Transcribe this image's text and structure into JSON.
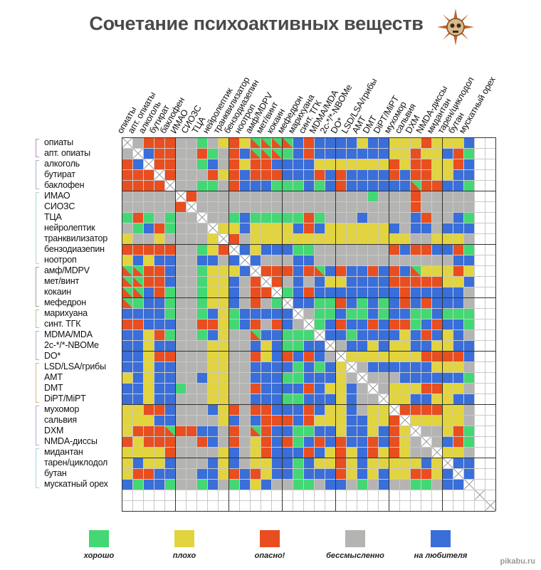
{
  "title": "Сочетание психоактивных веществ",
  "watermark": "pikabu.ru",
  "chart_data": {
    "type": "heatmap",
    "title": "Сочетание психоактивных веществ",
    "rows": [
      "опиаты",
      "апт. опиаты",
      "алкоголь",
      "бутират",
      "баклофен",
      "ИМАО",
      "СИОЗС",
      "ТЦА",
      "нейролептик",
      "транквилизатор",
      "бензодиазепин",
      "ноотроп",
      "амф/MDPV",
      "мет/винт",
      "кокаин",
      "мефедрон",
      "марихуана",
      "синт. ТГК",
      "MDMA/MDA",
      "2с-*/*-NBOMe",
      "DO*",
      "LSD/LSA/грибы",
      "AMT",
      "DMT",
      "DiPT/MiPT",
      "мухомор",
      "сальвия",
      "DXM",
      "NMDA-диссы",
      "мидантан",
      "тарен/циклодол",
      "бутан",
      "мускатный орех",
      "",
      ""
    ],
    "columns": [
      "опиаты",
      "апт. опиаты",
      "алкоголь",
      "бутират",
      "баклофен",
      "ИМАО",
      "СИОЗС",
      "ТЦА",
      "нейролептик",
      "транквилизатор",
      "бензодиазепин",
      "ноотроп",
      "амф/MDPV",
      "мет/винт",
      "кокаин",
      "мефедрон",
      "марихуана",
      "синт. ТГК",
      "MDMA/MDA",
      "2c-*/*-NBOMe",
      "DO*",
      "LSD/LSA/грибы",
      "AMT",
      "DMT",
      "DiPT/MiPT",
      "мухомор",
      "сальвия",
      "DXM",
      "NMDA-диссы",
      "мидантан",
      "тарен/циклодол",
      "бутан",
      "мускатный орех",
      "",
      ""
    ],
    "legend": [
      {
        "code": "G",
        "label": "хорошо",
        "color": "#43d874"
      },
      {
        "code": "Y",
        "label": "плохо",
        "color": "#e2d43f"
      },
      {
        "code": "R",
        "label": "опасно!",
        "color": "#e84e1f"
      },
      {
        "code": "S",
        "label": "бессмысленно",
        "color": "#b4b4b2"
      },
      {
        "code": "B",
        "label": "на любителя",
        "color": "#3a6ed8"
      }
    ],
    "special_codes": {
      "X": "diagonal (same substance)",
      "T": "split опасно!/хорошо",
      "W": "empty"
    },
    "matrix": [
      "XSRRRSSGSYRYTTTTBRBBBBYBBYYYRYYYBWW",
      "SXBRRSSRGSRBTTTGBRBBBBBBBYYRYYBRGWW",
      "RBXRRSSGBSRYRRBBBBYYYYYYYRYRRYYRBWW",
      "RRRXRSSSRYRBRRRBBBRBRBBBBRBRRYYBBWW",
      "RRRRXSSGGSRBBBGGGBGBRBBBBBBTRRBBGWW",
      "SSSSSXRSSSSSSSSSSSSSSSSGSSSRSSSSSWW",
      "SSSSSRXSSSSSSSSSSSSSSSSSSSSRSSSSSWW",
      "GRGSGSSXSSGBGGGGGRGSSSBSSSSBRSSBGWW",
      "SGBRGSSSXYYBYYYYBRBYYYYYYBSBBSBBBWW",
      "YSSYSSSSYXRSYYYYYYYYYYYYYYYSSYYYSWW",
      "RRRRRSSGYRXBYBBBGGSSSSSSSRBRRBBRGWW",
      "YBYBBSSBBSBXBSSSBBSSSSSSSSSSSSSBBWW",
      "TTRRBSSGYYYBXRRRBRTBRBBRBRBTYYYRYWW",
      "TTRRBSSGYYBSRXRSBSBYYBBBBRRRRRYYBWW",
      "TTBRGSSGYYBSRRXGBRBBBBBBBBRBBBBBSWW",
      "TGBBGSSGYYBSRSGXBBGGRBGBGBRBRBBBSWW",
      "BBBBGSSGBYGBBBBBXSGGBGGBGBBGGBGGGWW",
      "RRBBBSSRRYGBRSRBSXGBRBBRBRRGBRBBGWW",
      "BBYRGSSGBYSSTBBGGGXBBGBBBBYBRBYBSWW",
      "BBYBBSSSYYSSBYBGGBBXSBBYBYYBBYYBBWW",
      "BBYRRSSSYYSSRYBRBRBSXYYYYYYYRRRRBWW",
      "BBYBBSSSYYSSBBBBGBGBYXSBBBBBBYYYSWW",
      "YBYBBSSBYYSSBBBGGBBBYSXSSSBBBBBBGWW",
      "BBYBBGSSYYSSRBBBBRBYYBSXSYYYRRYYSWW",
      "BBYBBSSSYYSSBBBGGBBBYBSSXYYBBYYBBWW",
      "YYRRBSSSBYRSRRBBBRBYYBSYYXRRRRYYSWW",
      "YYYBBSSSSYBSBRRRBRYYYBBYYRXYYYYYSWW",
      "YRRRTRRBBSRSTRBBGGBBYBBYBRYXSSYRGWW",
      "RYRRRSSRBSRSYRBRGBRBRBBRBRYSXSBRGWW",
      "YYYYRSSSSYBSYRBBBRBYRYBRYRYSSXYYSWW",
      "YBYYBSSSBYBSYYBBGBYYRYBYYYYYBYXBBWW",
      "YRRBBSSBBYRBRYBBGBBBRYBYBYYRRYBXBWW",
      "BGBBGSSGBSGBYBSSGGSBBSGSBSSGGSBBXWW",
      "WWWWWWWWWWWWWWWWWWWWWWWWWWWWWWWWWXW",
      "WWWWWWWWWWWWWWWWWWWWWWWWWWWWWWWWWWX"
    ],
    "row_groups": [
      {
        "from": 0,
        "to": 1,
        "color": "#b98bc4"
      },
      {
        "from": 2,
        "to": 4,
        "color": "#9fb3c8"
      },
      {
        "from": 5,
        "to": 11,
        "color": "#a8d4d8"
      },
      {
        "from": 12,
        "to": 15,
        "color": "#a0a0a0"
      },
      {
        "from": 16,
        "to": 17,
        "color": "#9ccf8a"
      },
      {
        "from": 18,
        "to": 20,
        "color": "#9fb3c8"
      },
      {
        "from": 21,
        "to": 24,
        "color": "#d9b77a"
      },
      {
        "from": 25,
        "to": 28,
        "color": "#b8a8d8"
      },
      {
        "from": 29,
        "to": 32,
        "color": "#a8d0e8"
      }
    ],
    "major_grid_every": 5
  }
}
